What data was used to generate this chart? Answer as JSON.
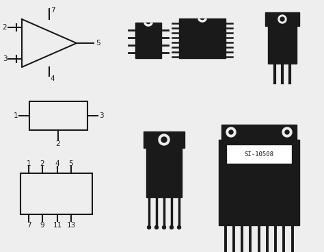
{
  "background_color": "#eeeeee",
  "fig_width": 4.74,
  "fig_height": 3.68,
  "dpi": 100,
  "line_color": "#1a1a1a",
  "line_width": 1.5,
  "fill_color": "#1a1a1a",
  "label_fontsize": 7.5
}
